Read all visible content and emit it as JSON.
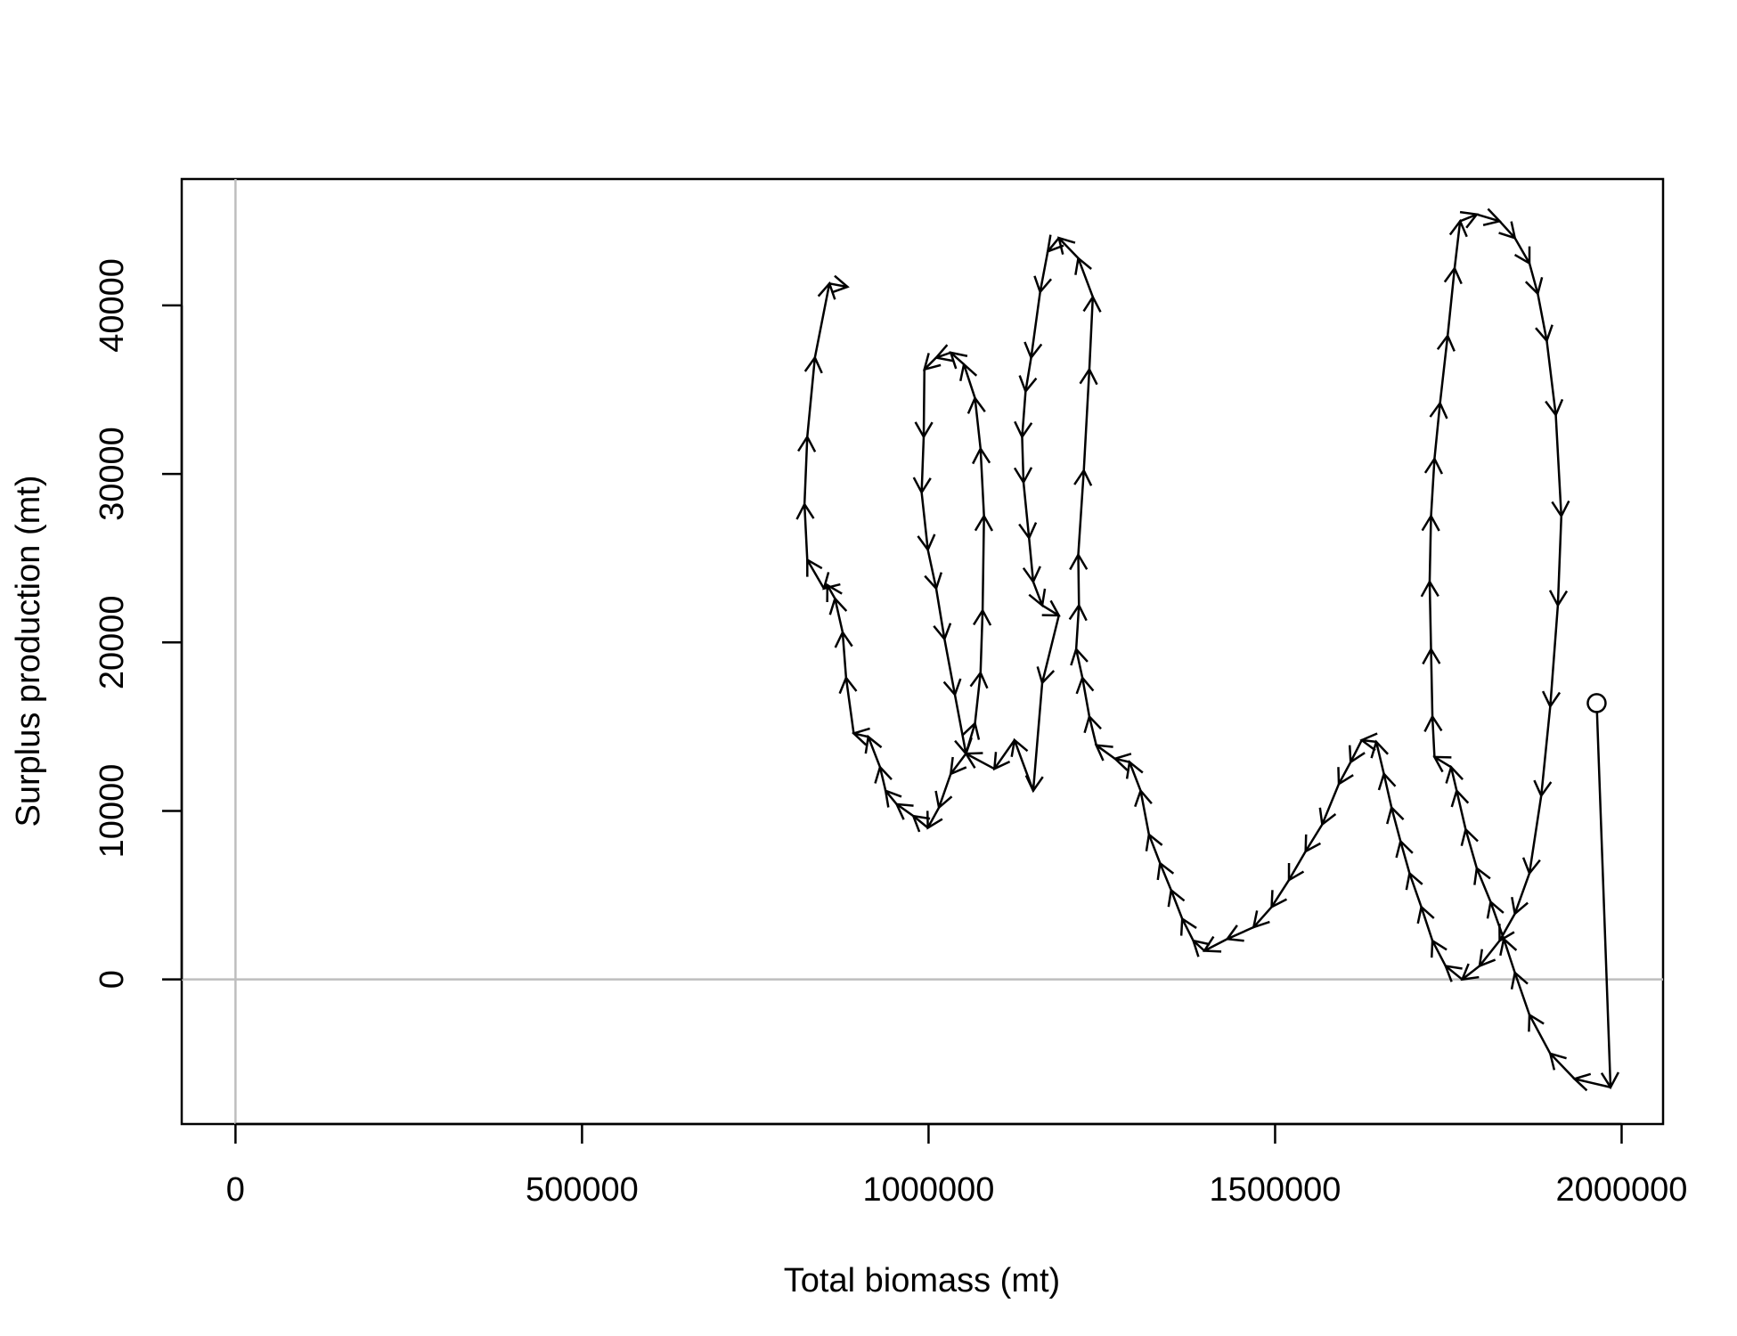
{
  "chart_data": {
    "type": "phase-arrows",
    "x_label": "Total biomass (mt)",
    "y_label": "Surplus production (mt)",
    "xlim": [
      -77600,
      2059800
    ],
    "ylim": [
      -8580,
      47500
    ],
    "xticks": [
      0,
      500000,
      1000000,
      1500000,
      2000000
    ],
    "yticks": [
      0,
      10000,
      20000,
      30000,
      40000
    ],
    "reference_lines": {
      "x": [
        0
      ],
      "y": [
        0
      ],
      "color": "#bebebe"
    },
    "start_marker": "circle",
    "x": [
      1964000,
      1984000,
      1932000,
      1897000,
      1867000,
      1846000,
      1830000,
      1811000,
      1791000,
      1775000,
      1762000,
      1754000,
      1730000,
      1727000,
      1725000,
      1723000,
      1725000,
      1730000,
      1738000,
      1749000,
      1759000,
      1767000,
      1791000,
      1824000,
      1846000,
      1867000,
      1879000,
      1892000,
      1905000,
      1913000,
      1908000,
      1897000,
      1884000,
      1867000,
      1846000,
      1824000,
      1795000,
      1770000,
      1746000,
      1727000,
      1711000,
      1694000,
      1681000,
      1668000,
      1657000,
      1646000,
      1625000,
      1609000,
      1592000,
      1568000,
      1544000,
      1520000,
      1495000,
      1469000,
      1431000,
      1398000,
      1382000,
      1366000,
      1350000,
      1334000,
      1318000,
      1306000,
      1290000,
      1269000,
      1242000,
      1232000,
      1222000,
      1213000,
      1217000,
      1216000,
      1224000,
      1232000,
      1237000,
      1216000,
      1188000,
      1172000,
      1161000,
      1148000,
      1140000,
      1135000,
      1137000,
      1145000,
      1151000,
      1164000,
      1188000,
      1164000,
      1151000,
      1124000,
      1095000,
      1054000,
      1067000,
      1075000,
      1078000,
      1080000,
      1075000,
      1067000,
      1051000,
      1032000,
      1011000,
      994000,
      993000,
      990000,
      999000,
      1011000,
      1023000,
      1038000,
      1054000,
      1032000,
      1015000,
      999000,
      978000,
      954000,
      938000,
      930000,
      913000,
      892000,
      881000,
      876000,
      865000,
      854000,
      849000,
      825000,
      821000,
      825000,
      836000,
      857000,
      883000
    ],
    "series": [
      {
        "color": "#000000",
        "values": [
          16400,
          -6400,
          -5900,
          -4400,
          -2100,
          400,
          2400,
          4600,
          6600,
          8900,
          11200,
          12600,
          13200,
          15600,
          19600,
          23600,
          27500,
          30900,
          34200,
          38200,
          42200,
          45000,
          45400,
          45000,
          44000,
          42500,
          40700,
          37900,
          33500,
          27500,
          22200,
          16200,
          10900,
          6300,
          3900,
          2300,
          800,
          0,
          800,
          2300,
          4300,
          6300,
          8200,
          10200,
          12200,
          14100,
          14200,
          12900,
          11600,
          9200,
          7600,
          5900,
          4300,
          3100,
          2400,
          1700,
          2300,
          3600,
          5300,
          6900,
          8600,
          11200,
          12900,
          13100,
          13900,
          15600,
          17900,
          19600,
          22200,
          25200,
          30200,
          36200,
          40500,
          42800,
          44000,
          43200,
          40800,
          36900,
          34900,
          32200,
          29500,
          26200,
          23600,
          22200,
          21600,
          17600,
          11200,
          14200,
          12500,
          13400,
          15200,
          18200,
          21900,
          27500,
          31500,
          34500,
          36500,
          37200,
          36900,
          36200,
          32200,
          28900,
          25500,
          23200,
          20200,
          16900,
          13400,
          12200,
          10200,
          9000,
          9700,
          10400,
          11200,
          12600,
          14400,
          14600,
          17900,
          20600,
          22600,
          23400,
          23200,
          24900,
          28200,
          32200,
          36900,
          41300,
          41100
        ]
      }
    ]
  }
}
